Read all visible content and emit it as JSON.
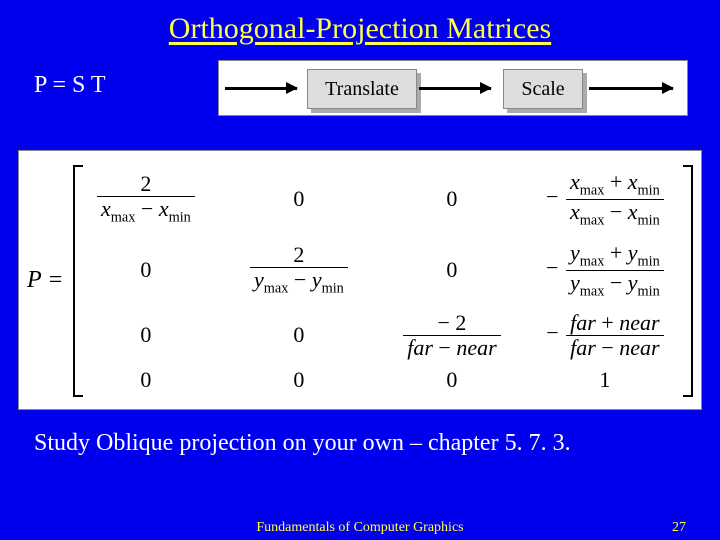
{
  "title": "Orthogonal-Projection Matrices",
  "equation": "P = S T",
  "diagram": {
    "box1": "Translate",
    "box2": "Scale"
  },
  "matrix": {
    "lhs": "P =",
    "cells": {
      "r0c1": "0",
      "r0c2": "0",
      "r1c0": "0",
      "r1c2": "0",
      "r2c0": "0",
      "r2c1": "0",
      "r3c0": "0",
      "r3c1": "0",
      "r3c2": "0",
      "r3c3": "1",
      "f00_num": "2",
      "f03_num_a": "x",
      "f03_num_as": "max",
      "f03_num_b": "x",
      "f03_num_bs": "min",
      "f0_den_a": "x",
      "f0_den_as": "max",
      "f0_den_b": "x",
      "f0_den_bs": "min",
      "f11_num": "2",
      "f13_num_a": "y",
      "f13_num_as": "max",
      "f13_num_b": "y",
      "f13_num_bs": "min",
      "f1_den_a": "y",
      "f1_den_as": "max",
      "f1_den_b": "y",
      "f1_den_bs": "min",
      "f22_num": "− 2",
      "f23_num_a": "far",
      "f23_num_b": "near",
      "f2_den_a": "far",
      "f2_den_b": "near"
    }
  },
  "study": "Study Oblique projection on your own – chapter 5. 7. 3.",
  "footer": {
    "course": "Fundamentals of Computer Graphics",
    "page": "27"
  }
}
